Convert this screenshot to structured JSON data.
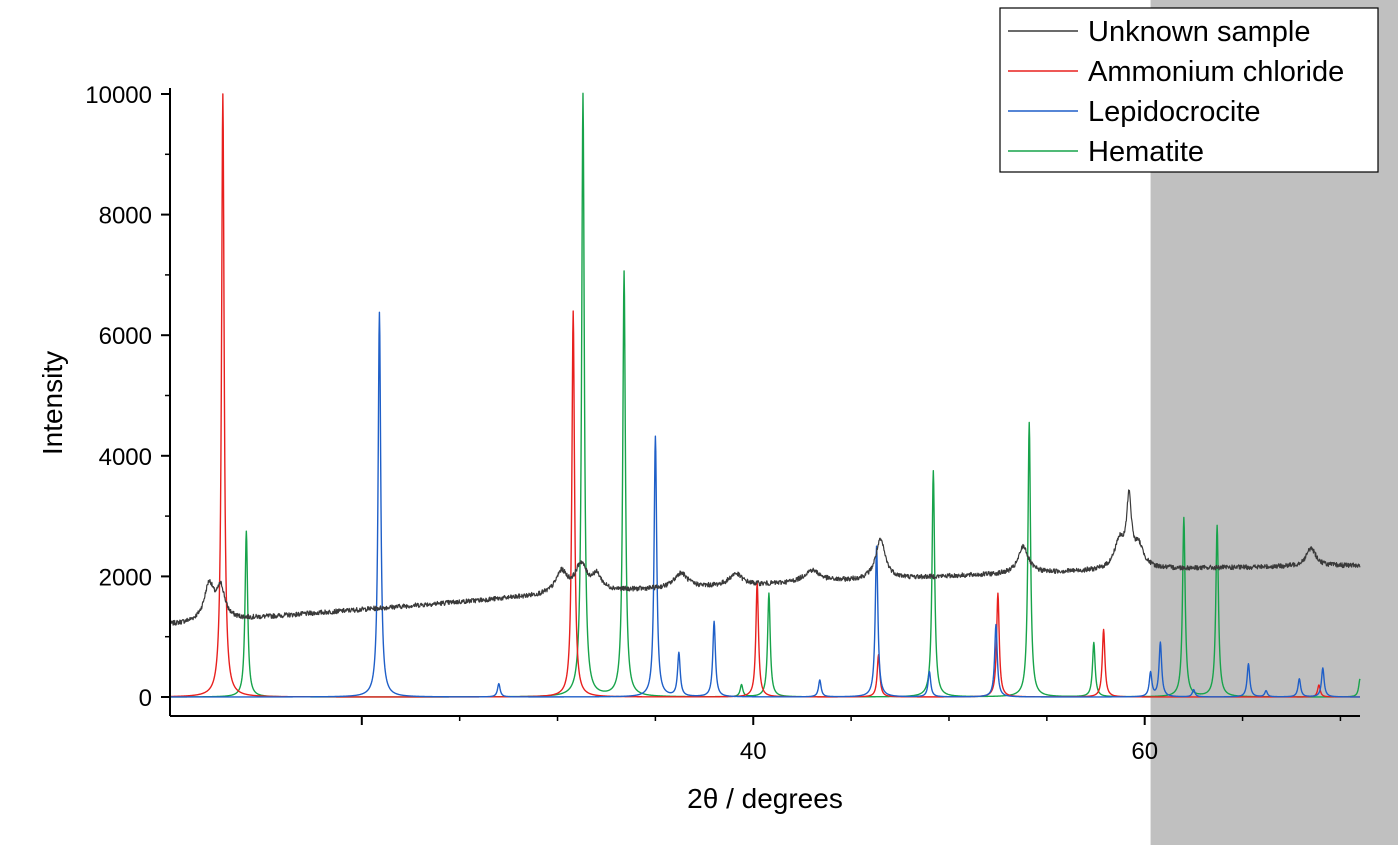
{
  "chart_data": {
    "type": "line",
    "title": "",
    "xlabel": "2θ / degrees",
    "ylabel": "Intensity",
    "xlim": [
      10.2,
      71.0
    ],
    "ylim": [
      0,
      10000
    ],
    "x_ticks": [
      40,
      60
    ],
    "y_ticks": [
      0,
      2000,
      4000,
      6000,
      8000,
      10000
    ],
    "grid": false,
    "legend_position": "top-right",
    "shaded_region": {
      "x_from": 60.3,
      "color": "#c0c0c0"
    },
    "series": [
      {
        "name": "Unknown sample",
        "color": "#3a3a3a",
        "kind": "measured",
        "baseline": [
          [
            10.2,
            1200
          ],
          [
            20,
            1450
          ],
          [
            30,
            1700
          ],
          [
            33,
            1760
          ],
          [
            40,
            1850
          ],
          [
            50,
            2000
          ],
          [
            60,
            2120
          ],
          [
            71,
            2180
          ]
        ],
        "peaks": [
          [
            12.2,
            600,
            0.3
          ],
          [
            12.8,
            500,
            0.25
          ],
          [
            30.2,
            350,
            0.35
          ],
          [
            31.2,
            450,
            0.35
          ],
          [
            32.0,
            250,
            0.3
          ],
          [
            36.3,
            250,
            0.4
          ],
          [
            39.1,
            200,
            0.4
          ],
          [
            43.0,
            200,
            0.5
          ],
          [
            46.5,
            650,
            0.3
          ],
          [
            53.8,
            450,
            0.3
          ],
          [
            58.7,
            450,
            0.3
          ],
          [
            59.2,
            1100,
            0.15
          ],
          [
            59.7,
            350,
            0.3
          ],
          [
            68.5,
            300,
            0.3
          ]
        ],
        "noise": 40
      },
      {
        "name": "Ammonium chloride",
        "color": "#e8201e",
        "kind": "reference",
        "peaks": [
          [
            12.9,
            10000
          ],
          [
            30.8,
            6400
          ],
          [
            40.2,
            1900
          ],
          [
            46.4,
            700
          ],
          [
            52.5,
            1720
          ],
          [
            57.9,
            1120
          ],
          [
            68.9,
            200
          ]
        ]
      },
      {
        "name": "Lepidocrocite",
        "color": "#1f5fc8",
        "kind": "reference",
        "peaks": [
          [
            20.9,
            6380
          ],
          [
            27.0,
            220
          ],
          [
            35.0,
            4320
          ],
          [
            36.2,
            720
          ],
          [
            38.0,
            1250
          ],
          [
            43.4,
            280
          ],
          [
            46.3,
            2500
          ],
          [
            49.0,
            420
          ],
          [
            52.4,
            1200
          ],
          [
            60.8,
            900
          ],
          [
            60.3,
            400
          ],
          [
            62.5,
            120
          ],
          [
            65.3,
            550
          ],
          [
            66.2,
            100
          ],
          [
            67.9,
            300
          ],
          [
            69.1,
            480
          ]
        ]
      },
      {
        "name": "Hematite",
        "color": "#17a34a",
        "kind": "reference",
        "peaks": [
          [
            14.1,
            2750
          ],
          [
            31.3,
            10000
          ],
          [
            33.4,
            7050
          ],
          [
            39.4,
            200
          ],
          [
            40.8,
            1720
          ],
          [
            49.2,
            3750
          ],
          [
            54.1,
            4550
          ],
          [
            57.4,
            900
          ],
          [
            62.0,
            2970
          ],
          [
            63.7,
            2840
          ],
          [
            71.0,
            300
          ]
        ]
      }
    ]
  }
}
